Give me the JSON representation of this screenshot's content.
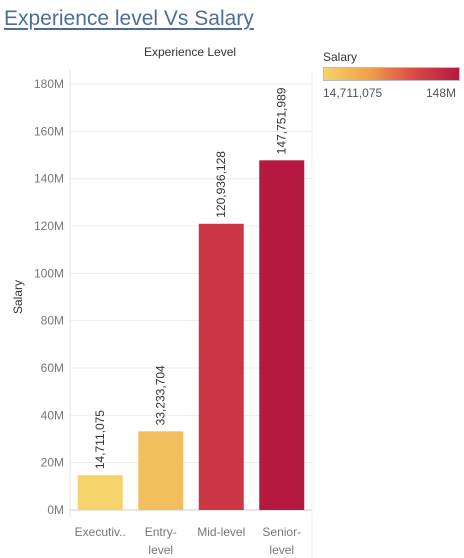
{
  "chart_data": {
    "type": "bar",
    "title": "Experience level Vs Salary",
    "column_header": "Experience Level",
    "xlabel": "",
    "ylabel": "Salary",
    "categories": [
      {
        "line1": "Executiv..",
        "line2": ""
      },
      {
        "line1": "Entry-",
        "line2": "level"
      },
      {
        "line1": "Mid-level",
        "line2": ""
      },
      {
        "line1": "Senior-",
        "line2": "level"
      }
    ],
    "values": [
      14711075,
      33233704,
      120936128,
      147751989
    ],
    "data_labels": [
      "14,711,075",
      "33,233,704",
      "120,936,128",
      "147,751,989"
    ],
    "ylim": [
      0,
      180000000
    ],
    "yticks": [
      0,
      20000000,
      40000000,
      60000000,
      80000000,
      100000000,
      120000000,
      140000000,
      160000000,
      180000000
    ],
    "ytick_labels": [
      "0M",
      "20M",
      "40M",
      "60M",
      "80M",
      "100M",
      "120M",
      "140M",
      "160M",
      "180M"
    ],
    "gridlines": true,
    "legend": {
      "title": "Salary",
      "min_label": "14,711,075",
      "max_label": "148M",
      "colors": [
        "#f5d46b",
        "#f0a04b",
        "#d94a48",
        "#b5193f"
      ],
      "placement": "top-right"
    }
  }
}
